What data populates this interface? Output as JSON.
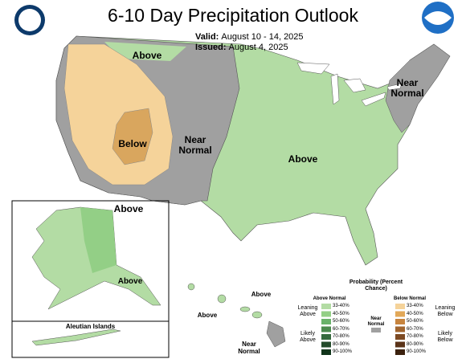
{
  "header": {
    "title": "6-10 Day Precipitation Outlook",
    "valid_label": "Valid:",
    "valid": "August 10 - 14, 2025",
    "issued_label": "Issued:",
    "issued": "August 4, 2025"
  },
  "map_labels": [
    "Above",
    "Below",
    "Near Normal",
    "Above",
    "Near Normal",
    "Above",
    "Above",
    "Above",
    "Above",
    "Near Normal"
  ],
  "inset_label": "Aleutian Islands",
  "legend": {
    "title": "Probability (Percent Chance)",
    "above_heading": "Above Normal",
    "below_heading": "Below Normal",
    "near_heading": "Near Normal",
    "leaning_above": "Leaning Above",
    "likely_above": "Likely Above",
    "leaning_below": "Leaning Below",
    "likely_below": "Likely Below",
    "ranges": [
      "33-40%",
      "40-50%",
      "50-60%",
      "60-70%",
      "70-80%",
      "80-90%",
      "90-100%"
    ]
  }
}
